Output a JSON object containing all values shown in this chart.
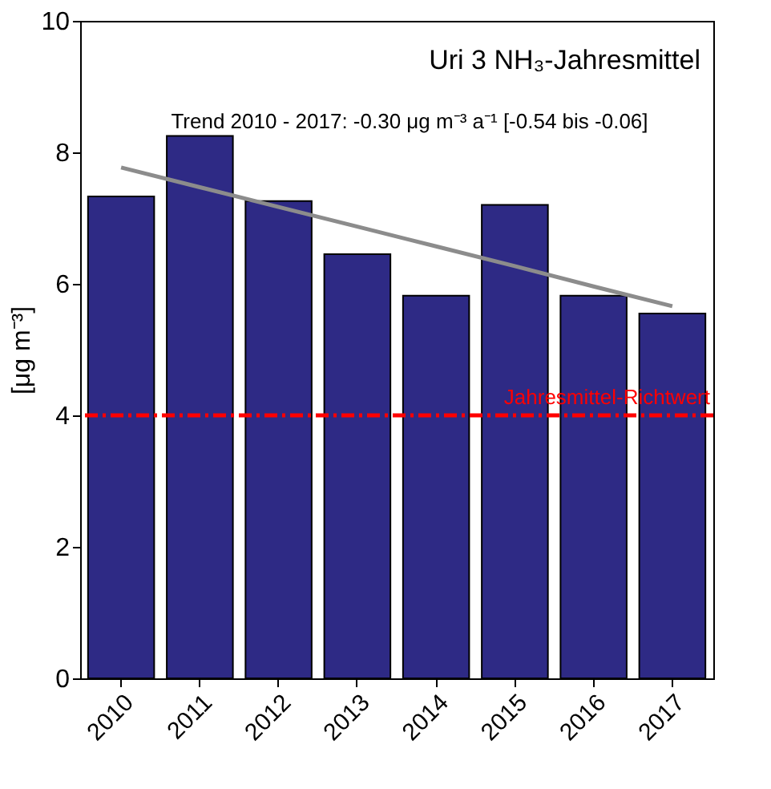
{
  "chart_data": {
    "type": "bar",
    "title": "Uri 3 NH₃-Jahresmittel",
    "ylabel": "[μg m⁻³]",
    "categories": [
      "2010",
      "2011",
      "2012",
      "2013",
      "2014",
      "2015",
      "2016",
      "2017"
    ],
    "series": [
      {
        "color": "#2e2a85",
        "values": [
          7.33,
          8.25,
          7.26,
          6.45,
          5.82,
          7.2,
          5.82,
          5.55
        ]
      },
      {
        "type": "line",
        "color": "#8c8c8c",
        "values": [
          7.77,
          7.47,
          7.17,
          6.87,
          6.57,
          6.27,
          5.96,
          5.66
        ]
      }
    ],
    "ylim": [
      0,
      10
    ],
    "yticks": [
      0,
      2,
      4,
      6,
      8,
      10
    ],
    "grid": false,
    "ref_lines": [
      {
        "axis": "y",
        "value": 4,
        "label": "Jahresmittel-Richtwert",
        "color": "#ff0000",
        "line_style": "dashdot"
      }
    ],
    "annotations": [
      "Trend 2010 - 2017: -0.30 μg m⁻³ a⁻¹ [-0.54 bis -0.06]"
    ]
  }
}
